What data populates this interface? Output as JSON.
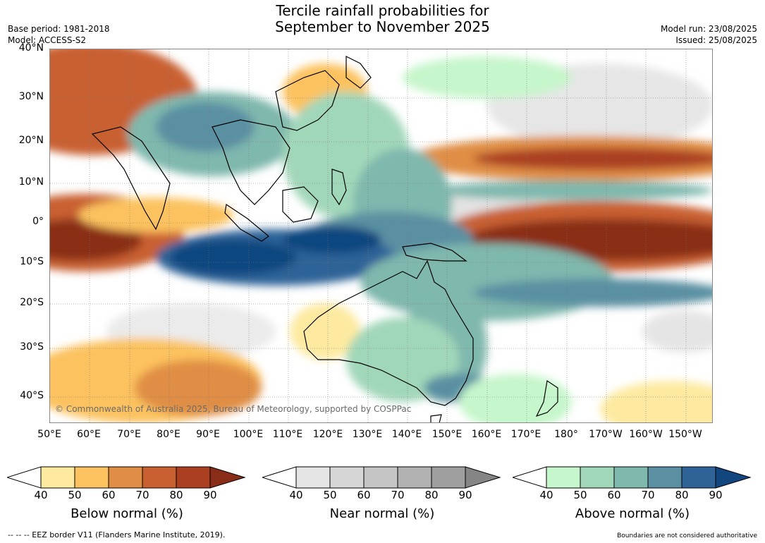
{
  "title_line1": "Tercile rainfall probabilities for",
  "title_line2": "September to November 2025",
  "base_period": "Base period: 1981-2018",
  "model": "Model: ACCESS-S2",
  "model_run": "Model run: 23/08/2025",
  "issued": "Issued: 25/08/2025",
  "lat_labels": [
    "40°N",
    "30°N",
    "20°N",
    "10°N",
    "0°",
    "10°S",
    "20°S",
    "30°S",
    "40°S"
  ],
  "lon_labels": [
    "50°E",
    "60°E",
    "70°E",
    "80°E",
    "90°E",
    "100°E",
    "110°E",
    "120°E",
    "130°E",
    "140°E",
    "150°E",
    "160°E",
    "170°E",
    "180°",
    "170°W",
    "160°W",
    "150°W"
  ],
  "copyright": "© Commonwealth of Australia 2025, Bureau of Meteorology, supported by COSPPac",
  "legends": [
    {
      "title": "Below normal (%)",
      "ticks": [
        "40",
        "50",
        "60",
        "70",
        "80",
        "90"
      ],
      "colors": [
        "#fdeaa0",
        "#fcc25f",
        "#e08e45",
        "#c96031",
        "#aa3f22",
        "#8a2d18"
      ]
    },
    {
      "title": "Near normal (%)",
      "ticks": [
        "40",
        "50",
        "60",
        "70",
        "80",
        "90"
      ],
      "colors": [
        "#e5e5e5",
        "#d6d6d6",
        "#c5c5c5",
        "#b2b2b2",
        "#9f9f9f",
        "#858585"
      ]
    },
    {
      "title": "Above normal (%)",
      "ticks": [
        "40",
        "50",
        "60",
        "70",
        "80",
        "90"
      ],
      "colors": [
        "#c6f6cb",
        "#a1d7b9",
        "#7fb8ad",
        "#5a90a2",
        "#2f6398",
        "#11467f"
      ]
    }
  ],
  "eez_note": "--  --  -- EEZ border V11 (Flanders Marine Institute, 2019).",
  "boundary_note": "Boundaries are not considered authoritative"
}
